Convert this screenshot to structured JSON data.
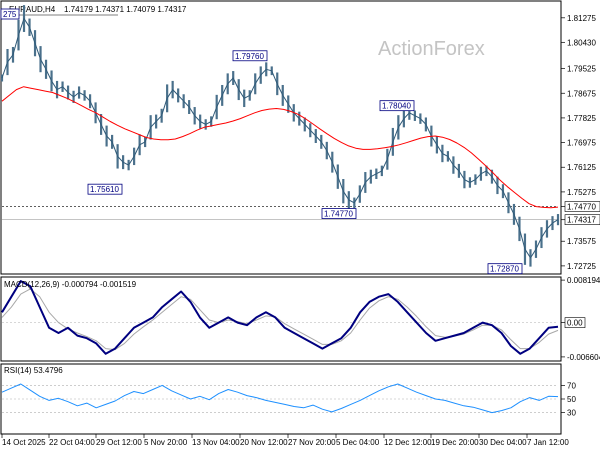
{
  "header": {
    "symbol": "EURAUD,H4",
    "ohlc": "1.74179 1.74371 1.74079 1.74317",
    "watermark": "ActionForex"
  },
  "chart_data": [
    {
      "type": "line",
      "name": "price",
      "title": "EURAUD,H4",
      "ylim": [
        1.7248,
        1.8182
      ],
      "y_ticks": [
        "1.81275",
        "1.80430",
        "1.79525",
        "1.78675",
        "1.77825",
        "1.76975",
        "1.76125",
        "1.75275",
        "1.74770",
        "1.74317",
        "1.73575",
        "1.72725"
      ],
      "x_ticks": [
        "14 Oct 2025",
        "22 Oct 04:00",
        "29 Oct 12:00",
        "5 Nov 20:00",
        "13 Nov 04:00",
        "20 Nov 12:00",
        "27 Nov 20:00",
        "5 Dec 04:00",
        "12 Dec 12:00",
        "19 Dec 20:00",
        "30 Dec 04:00",
        "7 Jan 12:00"
      ],
      "series": [
        {
          "values": [
            1.792,
            1.7975,
            1.8,
            1.8068,
            1.8125,
            1.8095,
            1.804,
            1.7985,
            1.795,
            1.791,
            1.788,
            1.789,
            1.787,
            1.7855,
            1.787,
            1.786,
            1.784,
            1.78,
            1.776,
            1.772,
            1.77,
            1.765,
            1.763,
            1.762,
            1.765,
            1.769,
            1.77,
            1.775,
            1.777,
            1.779,
            1.785,
            1.788,
            1.786,
            1.784,
            1.782,
            1.779,
            1.777,
            1.776,
            1.777,
            1.782,
            1.786,
            1.79,
            1.792,
            1.788,
            1.785,
            1.786,
            1.79,
            1.793,
            1.795,
            1.7945,
            1.79,
            1.786,
            1.783,
            1.78,
            1.778,
            1.776,
            1.774,
            1.772,
            1.77,
            1.767,
            1.763,
            1.758,
            1.753,
            1.75,
            1.749,
            1.752,
            1.756,
            1.758,
            1.759,
            1.76,
            1.764,
            1.77,
            1.775,
            1.778,
            1.78,
            1.779,
            1.778,
            1.776,
            1.772,
            1.769,
            1.766,
            1.765,
            1.762,
            1.76,
            1.757,
            1.756,
            1.757,
            1.759,
            1.76,
            1.758,
            1.755,
            1.753,
            1.749,
            1.745,
            1.74,
            1.733,
            1.73,
            1.733,
            1.737,
            1.74,
            1.742,
            1.7432
          ],
          "high": 1.8125,
          "low": 1.7287,
          "last": 1.74317
        },
        {
          "name": "MA",
          "values": [
            1.784,
            1.786,
            1.788,
            1.789,
            1.7885,
            1.788,
            1.7875,
            1.787,
            1.786,
            1.785,
            1.7838,
            1.7825,
            1.7812,
            1.78,
            1.7785,
            1.777,
            1.7757,
            1.7745,
            1.7735,
            1.7725,
            1.7715,
            1.771,
            1.7707,
            1.7707,
            1.771,
            1.7718,
            1.7728,
            1.774,
            1.775,
            1.7755,
            1.776,
            1.7765,
            1.7772,
            1.778,
            1.779,
            1.78,
            1.7808,
            1.7813,
            1.7815,
            1.7812,
            1.7805,
            1.7795,
            1.778,
            1.7763,
            1.7745,
            1.7728,
            1.7712,
            1.7698,
            1.7686,
            1.7678,
            1.7674,
            1.7674,
            1.7676,
            1.768,
            1.7684,
            1.769,
            1.7697,
            1.7705,
            1.7713,
            1.7718,
            1.772,
            1.7716,
            1.7708,
            1.7696,
            1.7681,
            1.7662,
            1.764,
            1.7617,
            1.7593,
            1.7568,
            1.7545,
            1.7525,
            1.7505,
            1.7487,
            1.7477,
            1.7474,
            1.7473,
            1.7475
          ],
          "color": "#ff0000"
        }
      ],
      "level_lines": [
        {
          "value": 1.7477,
          "label": "1.74770",
          "style": "dotted"
        },
        {
          "value": 1.74317,
          "label": "1.74317",
          "style": "solid"
        }
      ],
      "annotations": [
        {
          "label": "1.81275",
          "value": 1.81275,
          "position": "top-left"
        },
        {
          "label": "1.75610",
          "value": 1.7561,
          "position": "below"
        },
        {
          "label": "1.79760",
          "value": 1.7976,
          "position": "above"
        },
        {
          "label": "1.74770",
          "value": 1.7477,
          "position": "below"
        },
        {
          "label": "1.78040",
          "value": 1.7804,
          "position": "above"
        },
        {
          "label": "1.72870",
          "value": 1.7287,
          "position": "below"
        }
      ]
    },
    {
      "type": "line",
      "name": "macd",
      "title": "MACD(12,26,9) -0.000794 -0.001519",
      "ylim": [
        -0.0072,
        0.0086
      ],
      "y_ticks": [
        "0.008194",
        "0.00",
        "-0.006604"
      ],
      "zero_label": "0.00",
      "series": [
        {
          "name": "MACD",
          "color": "#000080",
          "values": [
            0.002,
            0.005,
            0.008,
            0.007,
            0.003,
            -0.001,
            -0.002,
            -0.001,
            -0.0025,
            -0.003,
            -0.004,
            -0.006,
            -0.005,
            -0.003,
            -0.001,
            0.0,
            0.001,
            0.003,
            0.0045,
            0.006,
            0.004,
            0.001,
            -0.001,
            0.0,
            0.001,
            0.0,
            -0.0005,
            0.001,
            0.002,
            0.001,
            -0.001,
            -0.002,
            -0.003,
            -0.004,
            -0.005,
            -0.004,
            -0.003,
            -0.001,
            0.002,
            0.004,
            0.005,
            0.0055,
            0.004,
            0.002,
            0.0,
            -0.002,
            -0.0035,
            -0.003,
            -0.0025,
            -0.002,
            -0.001,
            0.0,
            -0.0005,
            -0.002,
            -0.0045,
            -0.006,
            -0.005,
            -0.003,
            -0.001,
            -0.0008
          ]
        },
        {
          "name": "Signal",
          "color": "#a8a8a8",
          "values": [
            0.001,
            0.003,
            0.0055,
            0.0065,
            0.005,
            0.002,
            0.0,
            -0.0012,
            -0.002,
            -0.0027,
            -0.0035,
            -0.005,
            -0.0052,
            -0.004,
            -0.0022,
            -0.0008,
            0.0005,
            0.002,
            0.0035,
            0.005,
            0.0045,
            0.0025,
            0.0005,
            0.0,
            0.0005,
            0.0002,
            -0.0002,
            0.0005,
            0.0013,
            0.0011,
            -0.0002,
            -0.0012,
            -0.0022,
            -0.0032,
            -0.0042,
            -0.0042,
            -0.0035,
            -0.002,
            0.0005,
            0.0028,
            0.0042,
            0.005,
            0.0045,
            0.003,
            0.0012,
            -0.0008,
            -0.0025,
            -0.0028,
            -0.0026,
            -0.0022,
            -0.0014,
            -0.0005,
            -0.0005,
            -0.0014,
            -0.0033,
            -0.005,
            -0.005,
            -0.0038,
            -0.0022,
            -0.0015
          ]
        }
      ]
    },
    {
      "type": "line",
      "name": "rsi",
      "title": "RSI(14) 53.4796",
      "ylim": [
        0,
        100
      ],
      "y_ticks": [
        "100",
        "70",
        "50",
        "30",
        "0"
      ],
      "visible_ticks": [
        "70",
        "50",
        "30"
      ],
      "series": [
        {
          "name": "RSI",
          "color": "#1e90ff",
          "values": [
            60,
            66,
            72,
            63,
            54,
            48,
            51,
            46,
            40,
            44,
            37,
            42,
            47,
            55,
            61,
            58,
            64,
            70,
            62,
            56,
            50,
            54,
            49,
            58,
            64,
            60,
            55,
            52,
            48,
            45,
            42,
            39,
            37,
            41,
            35,
            31,
            36,
            42,
            48,
            55,
            62,
            68,
            72,
            66,
            60,
            55,
            50,
            48,
            44,
            40,
            38,
            34,
            30,
            33,
            37,
            46,
            52,
            48,
            54,
            53.4796
          ]
        }
      ]
    }
  ]
}
